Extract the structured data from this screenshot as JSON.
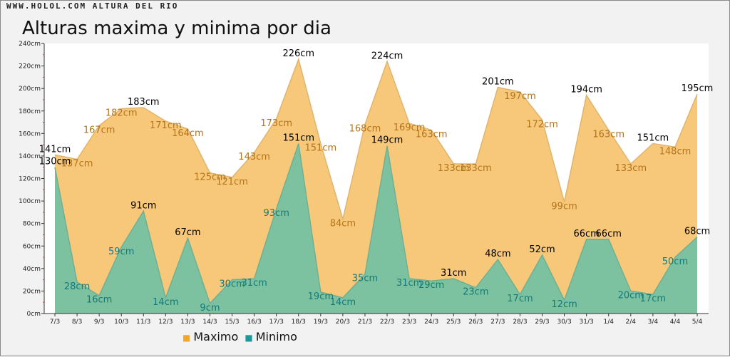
{
  "header": {
    "brand": "WWW.HOLOL.COM ALTURA DEL RIO",
    "title": "Alturas maxima y minima por dia"
  },
  "legend": {
    "max_marker": "■",
    "max_label": "Maximo",
    "min_marker": "■",
    "min_label": "Minimo"
  },
  "chart_data": {
    "type": "area",
    "title": "Alturas maxima y minima por dia",
    "unit": "cm",
    "categories": [
      "7/3",
      "8/3",
      "9/3",
      "10/3",
      "11/3",
      "12/3",
      "13/3",
      "14/3",
      "15/3",
      "16/3",
      "17/3",
      "18/3",
      "19/3",
      "20/3",
      "21/3",
      "22/3",
      "23/3",
      "24/3",
      "25/3",
      "26/3",
      "27/3",
      "28/3",
      "29/3",
      "30/3",
      "31/3",
      "1/4",
      "2/4",
      "3/4",
      "4/4",
      "5/4"
    ],
    "ylim": [
      0,
      240
    ],
    "yticks": [
      "0cm",
      "20cm",
      "40cm",
      "60cm",
      "80cm",
      "100cm",
      "120cm",
      "140cm",
      "160cm",
      "180cm",
      "200cm",
      "220cm",
      "240cm"
    ],
    "series": [
      {
        "name": "Maximo",
        "color": "#f8c87a",
        "label_color": "#b3741a",
        "values": [
          141,
          137,
          167,
          182,
          183,
          171,
          164,
          125,
          121,
          143,
          173,
          226,
          151,
          84,
          168,
          224,
          169,
          163,
          133,
          133,
          201,
          197,
          172,
          99,
          194,
          163,
          133,
          151,
          148,
          195
        ]
      },
      {
        "name": "Minimo",
        "color": "#7dc2a0",
        "label_color": "#127a7a",
        "values": [
          130,
          28,
          16,
          59,
          91,
          14,
          67,
          9,
          30,
          31,
          93,
          151,
          19,
          14,
          35,
          149,
          31,
          29,
          31,
          23,
          48,
          17,
          52,
          12,
          66,
          66,
          20,
          17,
          50,
          68
        ]
      }
    ],
    "grid": false,
    "legend_position": "bottom-left"
  }
}
